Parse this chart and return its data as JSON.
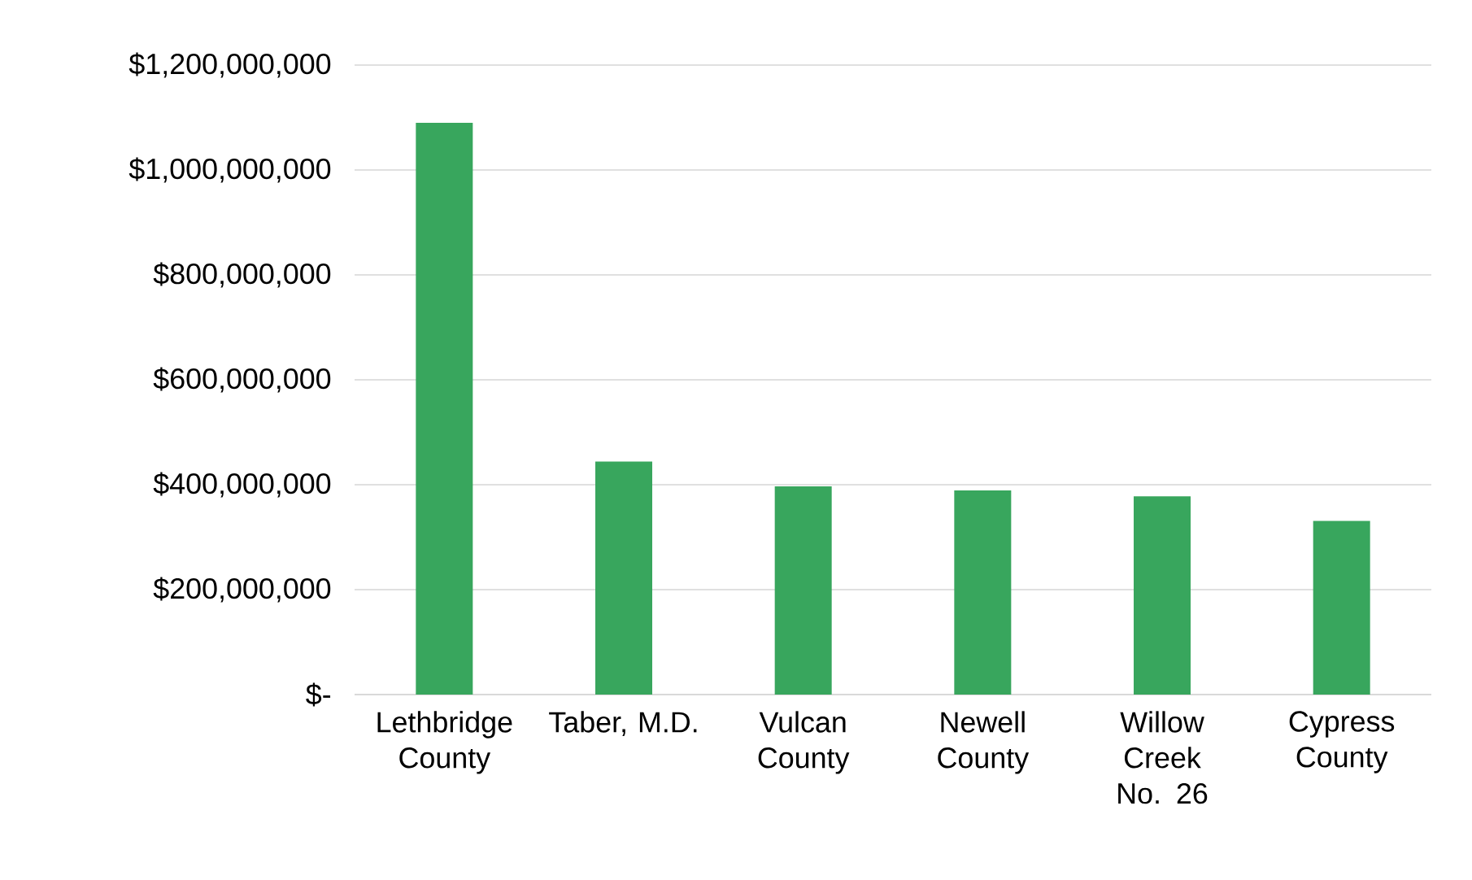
{
  "chart_data": {
    "type": "bar",
    "categories": [
      "Lethbridge County",
      "Taber, M.D.",
      "Vulcan County",
      "Newell County",
      "Willow Creek No. 26",
      "Cypress County"
    ],
    "values": [
      1090000000,
      444000000,
      397000000,
      389000000,
      378000000,
      331000000
    ],
    "color": "#38a65d",
    "ylim": [
      0,
      1200000000
    ],
    "yticks": [
      {
        "value": 0,
        "label": "$-"
      },
      {
        "value": 200000000,
        "label": "$200,000,000"
      },
      {
        "value": 400000000,
        "label": "$400,000,000"
      },
      {
        "value": 600000000,
        "label": "$600,000,000"
      },
      {
        "value": 800000000,
        "label": "$800,000,000"
      },
      {
        "value": 1000000000,
        "label": "$1,000,000,000"
      },
      {
        "value": 1200000000,
        "label": "$1,200,000,000"
      }
    ],
    "grid": "y"
  }
}
